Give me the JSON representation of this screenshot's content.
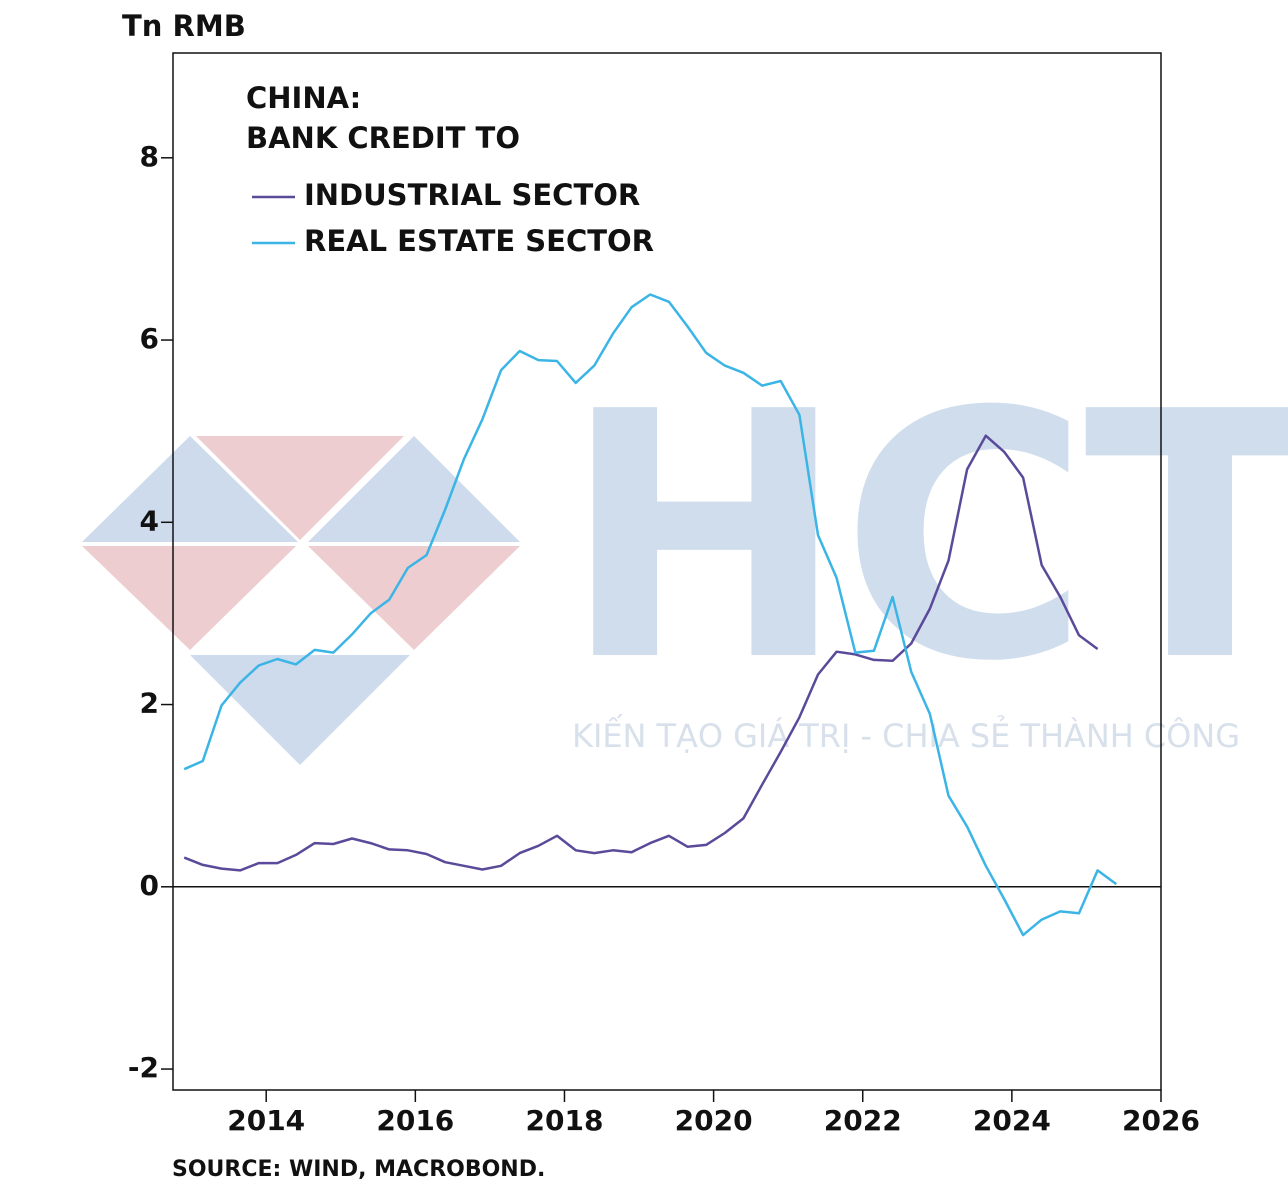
{
  "chart_data": {
    "type": "line",
    "title": "CHINA:",
    "subtitle": "BANK CREDIT TO",
    "y_label": "Tn RMB",
    "source": "SOURCE: WIND, MACROBOND.",
    "watermark": {
      "logo": "HCT",
      "tagline": "KIẾN TẠO GIÁ TRỊ - CHIA SẺ THÀNH CÔNG"
    },
    "x": [
      2012.9,
      2013.15,
      2013.4,
      2013.65,
      2013.9,
      2014.15,
      2014.4,
      2014.65,
      2014.9,
      2015.15,
      2015.4,
      2015.65,
      2015.9,
      2016.15,
      2016.4,
      2016.65,
      2016.9,
      2017.15,
      2017.4,
      2017.65,
      2017.9,
      2018.15,
      2018.4,
      2018.65,
      2018.9,
      2019.15,
      2019.4,
      2019.65,
      2019.9,
      2020.15,
      2020.4,
      2020.65,
      2020.9,
      2021.15,
      2021.4,
      2021.65,
      2021.9,
      2022.15,
      2022.4,
      2022.65,
      2022.9,
      2023.15,
      2023.4,
      2023.65,
      2023.9,
      2024.15,
      2024.4,
      2024.65,
      2024.9,
      2025.15,
      2025.4
    ],
    "series": [
      {
        "name": "INDUSTRIAL SECTOR",
        "color": "#5b4a9a",
        "values": [
          0.32,
          0.24,
          0.2,
          0.18,
          0.26,
          0.26,
          0.35,
          0.48,
          0.47,
          0.53,
          0.48,
          0.41,
          0.4,
          0.36,
          0.27,
          0.23,
          0.19,
          0.23,
          0.37,
          0.45,
          0.56,
          0.4,
          0.37,
          0.4,
          0.38,
          0.48,
          0.56,
          0.44,
          0.46,
          0.59,
          0.75,
          1.12,
          1.48,
          1.86,
          2.33,
          2.58,
          2.55,
          2.49,
          2.48,
          2.67,
          3.05,
          3.58,
          4.58,
          4.95,
          4.77,
          4.49,
          3.53,
          3.18,
          2.76,
          2.61,
          null
        ]
      },
      {
        "name": "REAL ESTATE SECTOR",
        "color": "#3bb4e6",
        "values": [
          1.29,
          1.38,
          1.99,
          2.24,
          2.43,
          2.5,
          2.44,
          2.6,
          2.57,
          2.77,
          3.0,
          3.15,
          3.5,
          3.64,
          4.14,
          4.69,
          5.13,
          5.67,
          5.88,
          5.78,
          5.77,
          5.53,
          5.72,
          6.07,
          6.36,
          6.5,
          6.42,
          6.15,
          5.86,
          5.72,
          5.64,
          5.5,
          5.55,
          5.18,
          3.86,
          3.39,
          2.57,
          2.59,
          3.18,
          2.36,
          1.9,
          1.0,
          0.66,
          0.23,
          -0.14,
          -0.53,
          -0.36,
          -0.27,
          -0.29,
          0.18,
          0.03
        ]
      }
    ],
    "xlim": [
      2012.75,
      2026
    ],
    "ylim": [
      -2.23,
      9.15
    ],
    "xticks": [
      2014,
      2016,
      2018,
      2020,
      2022,
      2024,
      2026
    ],
    "yticks": [
      -2,
      0,
      2,
      4,
      6,
      8
    ],
    "zero_line": 0
  }
}
